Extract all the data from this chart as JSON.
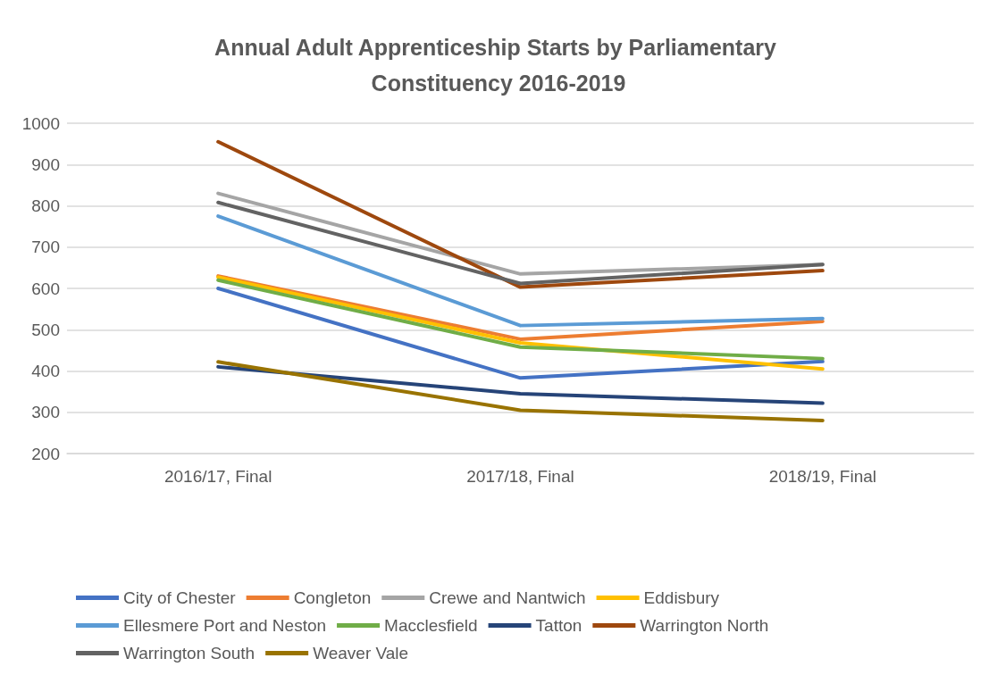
{
  "chart_data": {
    "type": "line",
    "title": "Annual Adult Apprenticeship Starts by Parliamentary Constituency 2016-2019",
    "categories": [
      "2016/17, Final",
      "2017/18, Final",
      "2018/19, Final"
    ],
    "series": [
      {
        "name": "City of Chester",
        "color": "#4472c4",
        "values": [
          600,
          383,
          423
        ]
      },
      {
        "name": "Congleton",
        "color": "#ed7d31",
        "values": [
          630,
          477,
          520
        ]
      },
      {
        "name": "Crewe and Nantwich",
        "color": "#a5a5a5",
        "values": [
          830,
          635,
          658
        ]
      },
      {
        "name": "Eddisbury",
        "color": "#ffc000",
        "values": [
          627,
          468,
          405
        ]
      },
      {
        "name": "Ellesmere Port and Neston",
        "color": "#5b9bd5",
        "values": [
          775,
          510,
          527
        ]
      },
      {
        "name": "Macclesfield",
        "color": "#70ad47",
        "values": [
          620,
          458,
          430
        ]
      },
      {
        "name": "Tatton",
        "color": "#264478",
        "values": [
          410,
          345,
          322
        ]
      },
      {
        "name": "Warrington North",
        "color": "#9e480e",
        "values": [
          955,
          603,
          643
        ]
      },
      {
        "name": "Warrington South",
        "color": "#636363",
        "values": [
          808,
          612,
          658
        ]
      },
      {
        "name": "Weaver Vale",
        "color": "#997300",
        "values": [
          422,
          305,
          280
        ]
      }
    ],
    "ylim": [
      200,
      1000
    ],
    "yticks": [
      200,
      300,
      400,
      500,
      600,
      700,
      800,
      900,
      1000
    ],
    "grid": "y",
    "legend": "bottom",
    "marker": "none",
    "line_style": "solid"
  }
}
